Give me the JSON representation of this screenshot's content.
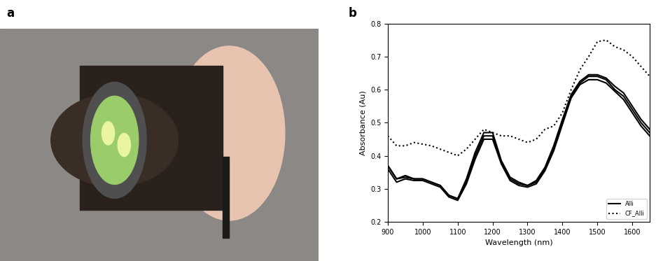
{
  "photo": {
    "panel_label": "a"
  },
  "chart_data": {
    "type": "line",
    "annotations": [
      "b"
    ],
    "x_label": "Wavelength (nm)",
    "y_label": "Absorbance (Au)",
    "x": [
      900,
      925,
      950,
      975,
      1000,
      1025,
      1050,
      1075,
      1100,
      1125,
      1150,
      1175,
      1200,
      1225,
      1250,
      1275,
      1300,
      1325,
      1350,
      1375,
      1400,
      1425,
      1450,
      1475,
      1500,
      1525,
      1550,
      1575,
      1600,
      1625,
      1650
    ],
    "series": [
      {
        "name": "Alli",
        "color": "#000000",
        "line_style": "solid",
        "values": [
          0.37,
          0.33,
          0.34,
          0.33,
          0.33,
          0.32,
          0.31,
          0.28,
          0.27,
          0.33,
          0.41,
          0.47,
          0.47,
          0.385,
          0.335,
          0.32,
          0.31,
          0.325,
          0.365,
          0.43,
          0.51,
          0.585,
          0.625,
          0.645,
          0.645,
          0.635,
          0.61,
          0.59,
          0.55,
          0.51,
          0.48
        ]
      },
      {
        "name": "Alli",
        "color": "#000000",
        "line_style": "solid",
        "values": [
          0.37,
          0.33,
          0.335,
          0.33,
          0.33,
          0.32,
          0.31,
          0.28,
          0.27,
          0.32,
          0.4,
          0.46,
          0.46,
          0.38,
          0.33,
          0.315,
          0.31,
          0.32,
          0.36,
          0.42,
          0.5,
          0.58,
          0.62,
          0.64,
          0.64,
          0.63,
          0.6,
          0.58,
          0.54,
          0.5,
          0.47
        ]
      },
      {
        "name": "Alli",
        "color": "#000000",
        "line_style": "solid",
        "values": [
          0.36,
          0.32,
          0.33,
          0.325,
          0.325,
          0.315,
          0.305,
          0.275,
          0.265,
          0.315,
          0.39,
          0.45,
          0.45,
          0.375,
          0.325,
          0.31,
          0.305,
          0.315,
          0.355,
          0.415,
          0.495,
          0.575,
          0.615,
          0.63,
          0.63,
          0.62,
          0.595,
          0.57,
          0.53,
          0.49,
          0.46
        ]
      },
      {
        "name": "CF_Alli",
        "color": "#000000",
        "line_style": "dotted",
        "values": [
          0.46,
          0.43,
          0.43,
          0.44,
          0.435,
          0.43,
          0.42,
          0.41,
          0.4,
          0.42,
          0.45,
          0.48,
          0.47,
          0.46,
          0.46,
          0.45,
          0.44,
          0.45,
          0.48,
          0.49,
          0.53,
          0.6,
          0.66,
          0.7,
          0.745,
          0.75,
          0.73,
          0.72,
          0.7,
          0.67,
          0.64
        ]
      }
    ],
    "xlim": [
      900,
      1650
    ],
    "xticks": [
      900,
      1000,
      1100,
      1200,
      1300,
      1400,
      1500,
      1600
    ],
    "ylim": [
      0.2,
      0.8
    ],
    "yticks": [
      0.2,
      0.3,
      0.4,
      0.5,
      0.6,
      0.7,
      0.8
    ],
    "grid": false,
    "legend": "lower right"
  }
}
